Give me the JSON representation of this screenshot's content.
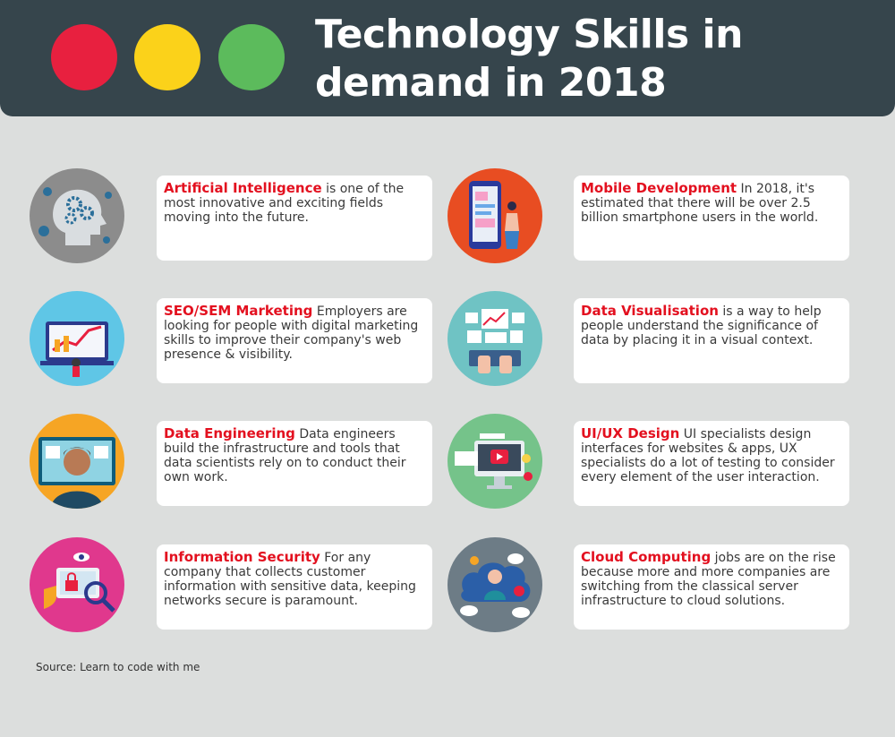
{
  "header": {
    "title_line1": "Technology Skills in",
    "title_line2": "demand in 2018",
    "lights": [
      "#e8203f",
      "#fbd21a",
      "#5cbb5c"
    ]
  },
  "items": [
    {
      "title": "Artificial Intelligence",
      "text": " is one of the most innovative and exciting fields moving into the future.",
      "icon": "ai-head-gears-icon",
      "color": "#8c8c8c"
    },
    {
      "title": "Mobile Development",
      "text": " In 2018, it's estimated that there will be over 2.5 billion smartphone users in the world.",
      "icon": "smartphone-user-icon",
      "color": "#e84d22"
    },
    {
      "title": "SEO/SEM Marketing",
      "text": " Employers are looking for people with digital marketing skills to improve their company's web presence & visibility.",
      "icon": "marketing-laptop-icon",
      "color": "#5fc6e6"
    },
    {
      "title": "Data Visualisation",
      "text": " is a way to help people understand the significance of data by placing it in a visual context.",
      "icon": "dashboard-keyboard-icon",
      "color": "#6fc3c4"
    },
    {
      "title": "Data Engineering",
      "text": " Data engineers build the infrastructure and tools that data scientists rely on to conduct their own work.",
      "icon": "engineer-monitor-icon",
      "color": "#f6a524"
    },
    {
      "title": "UI/UX Design",
      "text": " UI specialists design interfaces for websites & apps, UX specialists do a lot of testing to consider every element of the user interaction.",
      "icon": "video-monitor-icon",
      "color": "#75c38a"
    },
    {
      "title": "Information Security",
      "text": " For any company that collects customer information with sensitive data, keeping networks secure is paramount.",
      "icon": "security-lock-icon",
      "color": "#e0388d"
    },
    {
      "title": "Cloud Computing",
      "text": " jobs are on the rise because more and more companies are switching from the classical server infrastructure to cloud solutions.",
      "icon": "cloud-network-icon",
      "color": "#6d7c86"
    }
  ],
  "source": "Source: Learn to code with me"
}
